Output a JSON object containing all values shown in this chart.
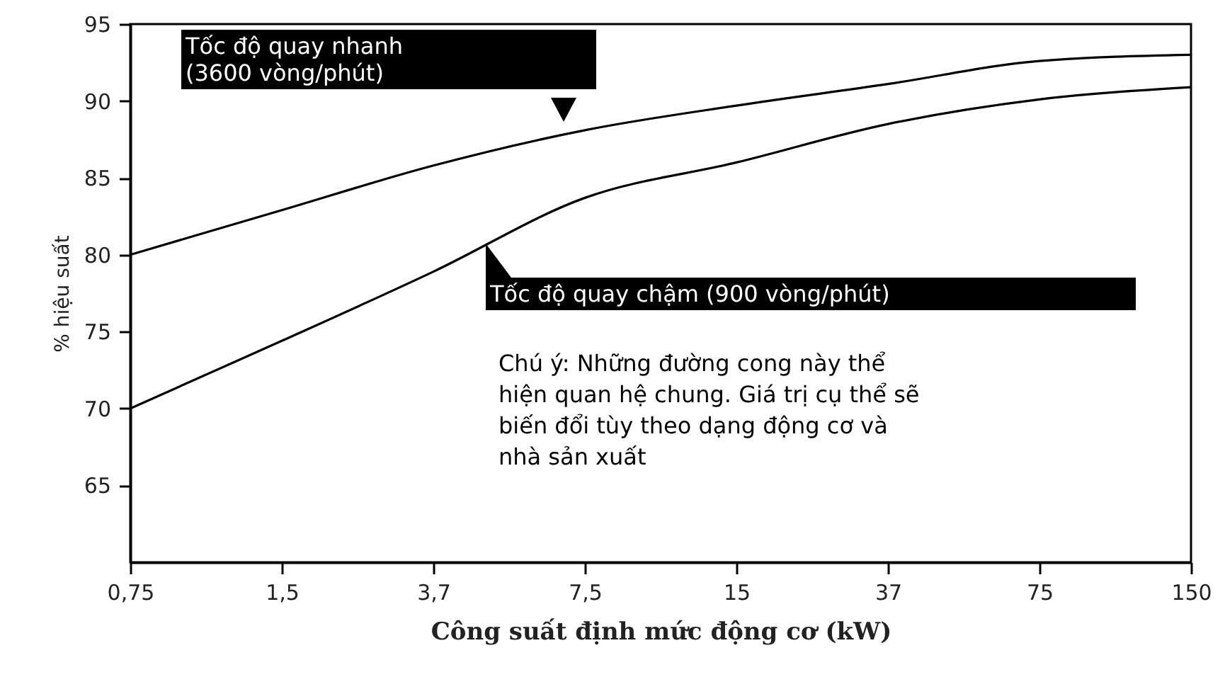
{
  "chart_data": {
    "type": "line",
    "xlabel": "Công suất định mức động cơ (kW)",
    "ylabel": "% hiệu suất",
    "categories": [
      "0,75",
      "1,5",
      "3,7",
      "7,5",
      "15",
      "37",
      "75",
      "150"
    ],
    "ylim": [
      60,
      95
    ],
    "yticks": [
      65,
      70,
      75,
      80,
      85,
      90,
      95
    ],
    "series": [
      {
        "name": "Tốc độ quay nhanh\n(3600 vòng/phút)",
        "color": "#000000",
        "values": [
          80,
          82.9,
          85.8,
          88.1,
          89.7,
          91.1,
          92.6,
          93.0
        ]
      },
      {
        "name": "Tốc độ quay chậm (900 vòng/phút)",
        "color": "#000000",
        "values": [
          70,
          74.4,
          78.9,
          83.7,
          86.0,
          88.5,
          90.1,
          90.9
        ]
      }
    ],
    "annotations": [
      "Chú ý: Những đường cong này thể\nhiện quan hệ chung. Giá trị cụ thể sẽ\nbiến đổi tùy theo dạng động cơ và\nnhà sản xuất"
    ]
  }
}
